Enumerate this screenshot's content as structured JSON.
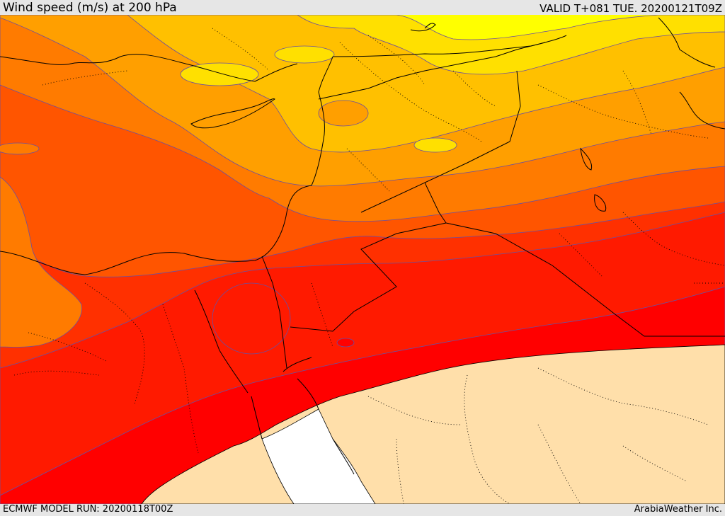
{
  "header": {
    "title": "Wind speed (m/s) at 200 hPa",
    "valid": "VALID T+081 TUE. 20200121T09Z"
  },
  "footer": {
    "model_run": "ECMWF MODEL RUN: 20200118T00Z",
    "credit": "ArabiaWeather Inc."
  },
  "map": {
    "region": "Eastern Mediterranean / Middle East",
    "field": "wind speed at 200 hPa",
    "colors": {
      "yellow": "#ffff00",
      "light_gold": "#ffe000",
      "gold": "#ffc000",
      "amber": "#ff9f00",
      "orange": "#ff7b00",
      "deep_orange": "#ff5500",
      "red_orange": "#ff3000",
      "red": "#ff0000",
      "land_outside_domain": "#ffdfaa",
      "sea_outside_domain": "#ffffff",
      "contour": "#6b4fa0",
      "coastline": "#000000"
    }
  }
}
